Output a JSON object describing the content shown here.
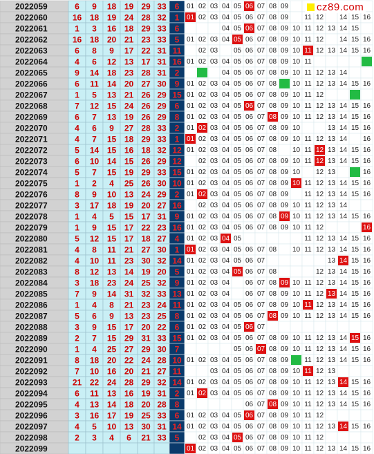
{
  "watermark": "cz89.com",
  "colors": {
    "period_bg": "#d2d2d2",
    "period_text": "#111111",
    "number_bg": "#c9eff5",
    "number_text": "#cc0000",
    "blue_bg": "#0a3a6b",
    "blue_text": "#ee2222",
    "hit_red": "#dd1111",
    "hit_green": "#22bb44",
    "grid_line": "#9abfca",
    "map_text": "#222222"
  },
  "chart_data": {
    "type": "table",
    "columns": [
      "period",
      "red_1",
      "red_2",
      "red_3",
      "red_4",
      "red_5",
      "red_6",
      "blue",
      "distribution_01_16"
    ],
    "map_numbers": [
      "01",
      "02",
      "03",
      "04",
      "05",
      "06",
      "07",
      "08",
      "09",
      "10",
      "11",
      "12",
      "13",
      "14",
      "15",
      "16"
    ],
    "rows": [
      {
        "period": "2022059",
        "reds": [
          6,
          9,
          18,
          19,
          29,
          33
        ],
        "blue": 6,
        "shown": [
          1,
          2,
          3,
          4,
          5,
          6,
          7,
          8,
          9
        ],
        "red_hit": [
          6
        ],
        "green_hit": []
      },
      {
        "period": "2022060",
        "reds": [
          16,
          18,
          19,
          24,
          28,
          32
        ],
        "blue": 1,
        "shown": [
          1,
          2,
          3,
          4,
          5,
          6,
          7,
          8,
          9,
          11,
          12,
          14,
          15,
          16
        ],
        "red_hit": [
          1
        ],
        "green_hit": []
      },
      {
        "period": "2022061",
        "reds": [
          1,
          3,
          16,
          18,
          29,
          33
        ],
        "blue": 6,
        "shown": [
          4,
          5,
          6,
          7,
          8,
          9,
          10,
          11,
          12,
          13,
          14,
          15
        ],
        "red_hit": [
          6
        ],
        "green_hit": []
      },
      {
        "period": "2022062",
        "reds": [
          16,
          18,
          20,
          21,
          23,
          33
        ],
        "blue": 5,
        "shown": [
          1,
          2,
          3,
          4,
          5,
          6,
          7,
          8,
          9,
          10,
          11,
          12,
          14,
          15,
          16
        ],
        "red_hit": [
          5
        ],
        "green_hit": []
      },
      {
        "period": "2022063",
        "reds": [
          6,
          8,
          9,
          17,
          22,
          31
        ],
        "blue": 11,
        "shown": [
          2,
          3,
          5,
          6,
          7,
          8,
          9,
          10,
          11,
          12,
          13,
          14,
          15,
          16
        ],
        "red_hit": [
          11
        ],
        "green_hit": []
      },
      {
        "period": "2022064",
        "reds": [
          4,
          6,
          12,
          13,
          17,
          31
        ],
        "blue": 16,
        "shown": [
          1,
          2,
          3,
          4,
          5,
          6,
          7,
          8,
          9,
          10,
          11,
          16
        ],
        "red_hit": [],
        "green_hit": [
          16
        ]
      },
      {
        "period": "2022065",
        "reds": [
          9,
          14,
          18,
          23,
          28,
          31
        ],
        "blue": 2,
        "shown": [
          2,
          4,
          5,
          6,
          7,
          8,
          9,
          10,
          11,
          12,
          13,
          14
        ],
        "red_hit": [],
        "green_hit": [
          2
        ]
      },
      {
        "period": "2022066",
        "reds": [
          6,
          11,
          14,
          20,
          27,
          30
        ],
        "blue": 9,
        "shown": [
          1,
          2,
          3,
          4,
          5,
          6,
          7,
          8,
          9,
          10,
          11,
          12,
          13,
          14,
          15,
          16
        ],
        "red_hit": [],
        "green_hit": [
          9
        ]
      },
      {
        "period": "2022067",
        "reds": [
          1,
          5,
          13,
          21,
          26,
          29
        ],
        "blue": 15,
        "shown": [
          1,
          2,
          3,
          4,
          5,
          6,
          7,
          8,
          9,
          10,
          11,
          12,
          15
        ],
        "red_hit": [],
        "green_hit": [
          15
        ]
      },
      {
        "period": "2022068",
        "reds": [
          7,
          12,
          15,
          24,
          26,
          29
        ],
        "blue": 6,
        "shown": [
          1,
          2,
          3,
          4,
          5,
          6,
          7,
          8,
          9,
          10,
          11,
          12,
          13,
          14,
          15,
          16
        ],
        "red_hit": [
          6
        ],
        "green_hit": []
      },
      {
        "period": "2022069",
        "reds": [
          6,
          7,
          13,
          19,
          26,
          29
        ],
        "blue": 8,
        "shown": [
          1,
          2,
          3,
          4,
          5,
          6,
          7,
          8,
          9,
          10,
          11,
          12,
          13,
          14,
          15,
          16
        ],
        "red_hit": [
          8
        ],
        "green_hit": []
      },
      {
        "period": "2022070",
        "reds": [
          4,
          6,
          9,
          27,
          28,
          33
        ],
        "blue": 2,
        "shown": [
          1,
          2,
          3,
          4,
          5,
          6,
          7,
          8,
          9,
          10,
          13,
          14,
          15,
          16
        ],
        "red_hit": [
          2
        ],
        "green_hit": []
      },
      {
        "period": "2022071",
        "reds": [
          4,
          7,
          15,
          18,
          29,
          33
        ],
        "blue": 1,
        "shown": [
          1,
          2,
          3,
          4,
          5,
          6,
          7,
          8,
          9,
          10,
          11,
          12,
          13,
          14,
          16
        ],
        "red_hit": [
          1
        ],
        "green_hit": []
      },
      {
        "period": "2022072",
        "reds": [
          5,
          14,
          15,
          16,
          18,
          32
        ],
        "blue": 12,
        "shown": [
          1,
          2,
          3,
          4,
          5,
          6,
          7,
          8,
          10,
          11,
          12,
          13,
          14,
          15,
          16
        ],
        "red_hit": [
          12
        ],
        "green_hit": []
      },
      {
        "period": "2022073",
        "reds": [
          6,
          10,
          14,
          15,
          26,
          29
        ],
        "blue": 12,
        "shown": [
          2,
          3,
          4,
          5,
          6,
          7,
          8,
          9,
          10,
          11,
          12,
          13,
          14,
          15,
          16
        ],
        "red_hit": [
          12
        ],
        "green_hit": []
      },
      {
        "period": "2022074",
        "reds": [
          5,
          7,
          15,
          19,
          29,
          33
        ],
        "blue": 15,
        "shown": [
          1,
          2,
          3,
          4,
          5,
          6,
          7,
          8,
          9,
          10,
          12,
          13,
          15,
          16
        ],
        "red_hit": [],
        "green_hit": [
          15
        ]
      },
      {
        "period": "2022075",
        "reds": [
          1,
          2,
          4,
          25,
          26,
          30
        ],
        "blue": 10,
        "shown": [
          1,
          2,
          3,
          4,
          5,
          6,
          7,
          8,
          9,
          10,
          11,
          12,
          13,
          14,
          15,
          16
        ],
        "red_hit": [
          10
        ],
        "green_hit": []
      },
      {
        "period": "2022076",
        "reds": [
          8,
          9,
          10,
          13,
          24,
          29
        ],
        "blue": 2,
        "shown": [
          1,
          2,
          3,
          4,
          5,
          6,
          7,
          8,
          9,
          11,
          12,
          13,
          14,
          15,
          16
        ],
        "red_hit": [
          2
        ],
        "green_hit": []
      },
      {
        "period": "2022077",
        "reds": [
          3,
          17,
          18,
          19,
          20,
          27
        ],
        "blue": 16,
        "shown": [
          2,
          3,
          4,
          5,
          6,
          7,
          8,
          9,
          10,
          11,
          12,
          13,
          14
        ],
        "red_hit": [],
        "green_hit": []
      },
      {
        "period": "2022078",
        "reds": [
          1,
          4,
          5,
          15,
          17,
          31
        ],
        "blue": 9,
        "shown": [
          1,
          2,
          3,
          4,
          5,
          6,
          7,
          8,
          9,
          10,
          11,
          12,
          13,
          14,
          15,
          16
        ],
        "red_hit": [
          9
        ],
        "green_hit": []
      },
      {
        "period": "2022079",
        "reds": [
          1,
          9,
          15,
          17,
          22,
          23
        ],
        "blue": 16,
        "shown": [
          1,
          2,
          3,
          4,
          5,
          6,
          7,
          8,
          9,
          10,
          11,
          12,
          16
        ],
        "red_hit": [
          16
        ],
        "green_hit": []
      },
      {
        "period": "2022080",
        "reds": [
          5,
          12,
          15,
          17,
          18,
          27
        ],
        "blue": 4,
        "shown": [
          1,
          2,
          3,
          4,
          5,
          11,
          12,
          13,
          14,
          15,
          16
        ],
        "red_hit": [
          4
        ],
        "green_hit": []
      },
      {
        "period": "2022081",
        "reds": [
          4,
          8,
          11,
          21,
          27,
          30
        ],
        "blue": 1,
        "shown": [
          1,
          2,
          3,
          4,
          5,
          6,
          7,
          8,
          10,
          11,
          12,
          13,
          14,
          15,
          16
        ],
        "red_hit": [
          1
        ],
        "green_hit": []
      },
      {
        "period": "2022082",
        "reds": [
          4,
          10,
          11,
          23,
          30,
          32
        ],
        "blue": 14,
        "shown": [
          1,
          2,
          3,
          4,
          5,
          6,
          7,
          13,
          14,
          15,
          16
        ],
        "red_hit": [
          14
        ],
        "green_hit": []
      },
      {
        "period": "2022083",
        "reds": [
          8,
          12,
          13,
          14,
          19,
          20
        ],
        "blue": 5,
        "shown": [
          1,
          2,
          3,
          4,
          5,
          6,
          7,
          8,
          12,
          13,
          14,
          15,
          16
        ],
        "red_hit": [
          5
        ],
        "green_hit": []
      },
      {
        "period": "2022084",
        "reds": [
          3,
          18,
          23,
          24,
          25,
          32
        ],
        "blue": 9,
        "shown": [
          1,
          2,
          3,
          4,
          6,
          7,
          8,
          9,
          10,
          11,
          12,
          13,
          14,
          15,
          16
        ],
        "red_hit": [
          9
        ],
        "green_hit": []
      },
      {
        "period": "2022085",
        "reds": [
          7,
          9,
          14,
          31,
          32,
          33
        ],
        "blue": 13,
        "shown": [
          1,
          2,
          3,
          4,
          6,
          7,
          8,
          9,
          10,
          11,
          12,
          13,
          14,
          15,
          16
        ],
        "red_hit": [
          13
        ],
        "green_hit": []
      },
      {
        "period": "2022086",
        "reds": [
          1,
          4,
          8,
          21,
          23,
          24
        ],
        "blue": 11,
        "shown": [
          1,
          2,
          3,
          4,
          5,
          6,
          7,
          8,
          9,
          10,
          11,
          12,
          13,
          14,
          15,
          16
        ],
        "red_hit": [
          11
        ],
        "green_hit": []
      },
      {
        "period": "2022087",
        "reds": [
          5,
          6,
          9,
          13,
          23,
          25
        ],
        "blue": 8,
        "shown": [
          1,
          2,
          3,
          4,
          5,
          6,
          7,
          8,
          9,
          10,
          11,
          12,
          13,
          14,
          15,
          16
        ],
        "red_hit": [
          8
        ],
        "green_hit": []
      },
      {
        "period": "2022088",
        "reds": [
          3,
          9,
          15,
          17,
          20,
          22
        ],
        "blue": 6,
        "shown": [
          1,
          2,
          3,
          4,
          5,
          6,
          7
        ],
        "red_hit": [
          6
        ],
        "green_hit": []
      },
      {
        "period": "2022089",
        "reds": [
          2,
          7,
          15,
          29,
          31,
          33
        ],
        "blue": 15,
        "shown": [
          1,
          2,
          3,
          4,
          5,
          6,
          7,
          8,
          9,
          10,
          11,
          12,
          13,
          14,
          15,
          16
        ],
        "red_hit": [
          15
        ],
        "green_hit": []
      },
      {
        "period": "2022090",
        "reds": [
          1,
          4,
          25,
          27,
          29,
          30
        ],
        "blue": 7,
        "shown": [
          5,
          6,
          7,
          8,
          9,
          10,
          11,
          12,
          13,
          14,
          15,
          16
        ],
        "red_hit": [
          7
        ],
        "green_hit": []
      },
      {
        "period": "2022091",
        "reds": [
          8,
          18,
          20,
          22,
          24,
          28
        ],
        "blue": 10,
        "shown": [
          1,
          2,
          3,
          4,
          5,
          6,
          7,
          8,
          9,
          10,
          11,
          12,
          13,
          14,
          15,
          16
        ],
        "red_hit": [],
        "green_hit": [
          10
        ]
      },
      {
        "period": "2022092",
        "reds": [
          7,
          10,
          16,
          20,
          21,
          27
        ],
        "blue": 11,
        "shown": [
          3,
          4,
          5,
          6,
          7,
          8,
          9,
          10,
          11,
          12,
          13
        ],
        "red_hit": [
          11
        ],
        "green_hit": []
      },
      {
        "period": "2022093",
        "reds": [
          21,
          22,
          24,
          28,
          29,
          32
        ],
        "blue": 14,
        "shown": [
          1,
          2,
          3,
          4,
          5,
          6,
          7,
          8,
          9,
          10,
          11,
          12,
          13,
          14,
          15,
          16
        ],
        "red_hit": [
          14
        ],
        "green_hit": []
      },
      {
        "period": "2022094",
        "reds": [
          6,
          11,
          13,
          16,
          19,
          31
        ],
        "blue": 2,
        "shown": [
          1,
          2,
          3,
          4,
          5,
          6,
          7,
          8,
          9,
          10,
          11,
          12,
          13,
          14,
          15,
          16
        ],
        "red_hit": [
          2
        ],
        "green_hit": []
      },
      {
        "period": "2022095",
        "reds": [
          4,
          13,
          14,
          18,
          20,
          28
        ],
        "blue": 8,
        "shown": [
          6,
          7,
          8,
          9,
          10,
          11,
          12,
          13,
          14,
          15,
          16
        ],
        "red_hit": [
          8
        ],
        "green_hit": []
      },
      {
        "period": "2022096",
        "reds": [
          3,
          16,
          17,
          19,
          25,
          33
        ],
        "blue": 6,
        "shown": [
          1,
          2,
          3,
          4,
          5,
          6,
          7,
          8,
          9,
          10,
          11,
          12
        ],
        "red_hit": [
          6
        ],
        "green_hit": []
      },
      {
        "period": "2022097",
        "reds": [
          4,
          5,
          10,
          13,
          30,
          31
        ],
        "blue": 14,
        "shown": [
          1,
          2,
          3,
          4,
          5,
          6,
          7,
          8,
          9,
          10,
          11,
          12,
          13,
          14,
          15,
          16
        ],
        "red_hit": [
          14
        ],
        "green_hit": []
      },
      {
        "period": "2022098",
        "reds": [
          2,
          3,
          4,
          6,
          21,
          33
        ],
        "blue": 5,
        "shown": [
          2,
          3,
          4,
          5,
          6,
          7,
          8,
          9,
          10,
          11,
          12
        ],
        "red_hit": [
          5
        ],
        "green_hit": []
      },
      {
        "period": "2022099",
        "reds": [],
        "blue": null,
        "shown": [
          1,
          2,
          3,
          4,
          5,
          6,
          7,
          8,
          9,
          10,
          11,
          12,
          13,
          14,
          15,
          16
        ],
        "red_hit": [
          1
        ],
        "green_hit": []
      }
    ]
  }
}
